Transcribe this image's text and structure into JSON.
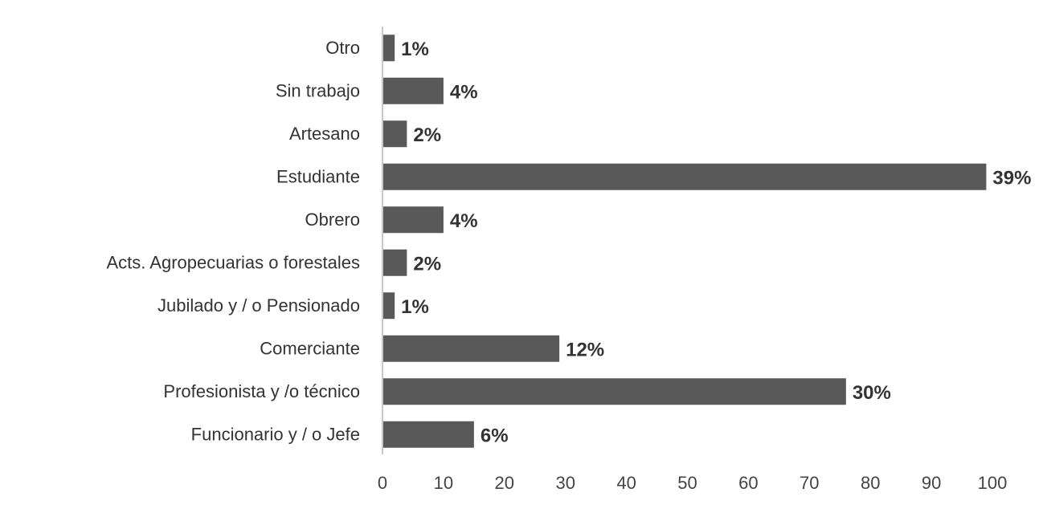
{
  "chart_data": {
    "type": "bar",
    "orientation": "horizontal",
    "title": "",
    "xlabel": "",
    "ylabel": "",
    "xlim": [
      0,
      100
    ],
    "x_ticks": [
      "0",
      "10",
      "20",
      "30",
      "40",
      "50",
      "60",
      "70",
      "80",
      "90",
      "100"
    ],
    "grid": false,
    "legend": "none",
    "bar_color": "#595959",
    "categories": [
      "Otro",
      "Sin trabajo",
      "Artesano",
      "Estudiante",
      "Obrero",
      "Acts. Agropecuarias o forestales",
      "Jubilado y / o Pensionado",
      "Comerciante",
      "Profesionista y /o técnico",
      "Funcionario y / o Jefe"
    ],
    "values": [
      2,
      10,
      4,
      99,
      10,
      4,
      2,
      29,
      76,
      15
    ],
    "data_labels": [
      "1%",
      "4%",
      "2%",
      "39%",
      "4%",
      "2%",
      "1%",
      "12%",
      "30%",
      "6%"
    ]
  }
}
